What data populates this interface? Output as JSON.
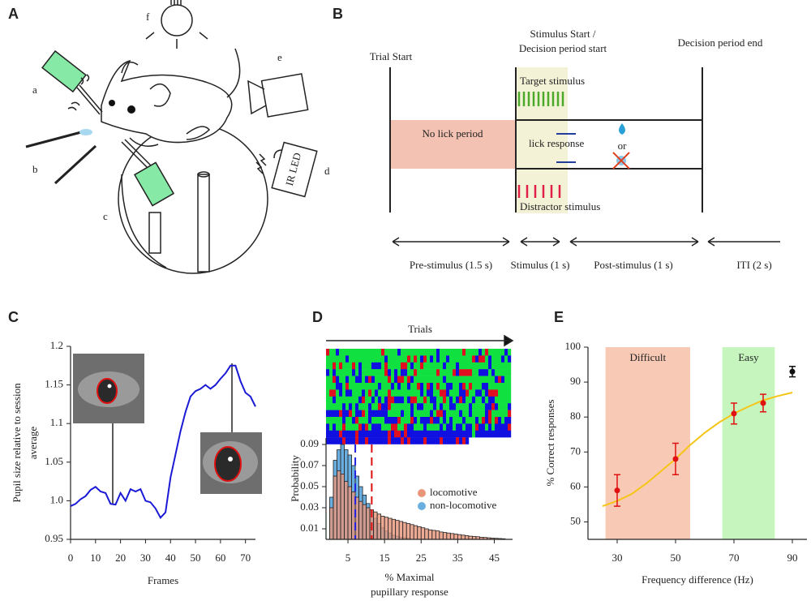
{
  "panel_labels": [
    "A",
    "B",
    "C",
    "D",
    "E"
  ],
  "setup": {
    "labels": [
      "a",
      "b",
      "c",
      "d",
      "e",
      "f"
    ],
    "ir_led": "IR LED"
  },
  "timeline": {
    "trial_start": "Trial Start",
    "stimulus_start": [
      "Stimulus Start /",
      "Decision period start"
    ],
    "decision_end": "Decision period end",
    "no_lick": "No lick period",
    "target": "Target stimulus",
    "lick": "lick response",
    "or": "or",
    "distractor": "Distractor stimulus",
    "periods": [
      "Pre-stimulus (1.5 s)",
      "Stimulus (1 s)",
      "Post-stimulus (1 s)",
      "ITI (2 s)"
    ]
  },
  "chart_data": [
    {
      "type": "line",
      "xlabel": "Frames",
      "ylabel": [
        "Pupil size relative to session",
        "average"
      ],
      "x": [
        0,
        2,
        4,
        6,
        8,
        10,
        12,
        14,
        16,
        18,
        20,
        22,
        24,
        26,
        28,
        30,
        32,
        34,
        36,
        38,
        40,
        42,
        44,
        46,
        48,
        50,
        52,
        54,
        56,
        58,
        60,
        62,
        64,
        66,
        68,
        70,
        72,
        74
      ],
      "values": [
        0.993,
        0.996,
        1.002,
        1.006,
        1.014,
        1.018,
        1.012,
        1.01,
        0.996,
        0.995,
        1.01,
        1.0,
        1.015,
        1.012,
        1.015,
        1.0,
        0.998,
        0.99,
        0.978,
        0.985,
        1.03,
        1.06,
        1.09,
        1.115,
        1.135,
        1.142,
        1.145,
        1.15,
        1.145,
        1.15,
        1.158,
        1.165,
        1.175,
        1.175,
        1.155,
        1.14,
        1.135,
        1.122
      ],
      "color": "#1a1ad6",
      "xlim": [
        0,
        74
      ],
      "ylim": [
        0.95,
        1.2
      ],
      "xticks": [
        0,
        10,
        20,
        30,
        40,
        50,
        60,
        70
      ],
      "yticks": [
        0.95,
        {
          "value": 1,
          "label": "1.0"
        },
        1.05,
        1.1,
        1.15,
        1.2
      ]
    },
    {
      "type": "histogram",
      "title": "Trials",
      "xlabel": [
        "% Maximal",
        "pupillary response"
      ],
      "ylabel": "Probability",
      "bins": [
        0,
        1,
        2,
        3,
        4,
        5,
        6,
        7,
        8,
        9,
        10,
        11,
        12,
        13,
        14,
        15,
        16,
        17,
        18,
        19,
        20,
        21,
        22,
        23,
        24,
        25,
        26,
        27,
        28,
        29,
        30,
        31,
        32,
        33,
        34,
        35,
        36,
        37,
        38,
        39,
        40,
        41,
        42,
        43,
        44,
        45,
        46,
        47,
        48
      ],
      "series": [
        {
          "name": "non-locomotive",
          "color": "#6aaee0",
          "line_x": 7,
          "values": [
            0.04,
            0.075,
            0.085,
            0.09,
            0.085,
            0.08,
            0.07,
            0.06,
            0.05,
            0.042,
            0.034,
            0.027,
            0.02,
            0.015,
            0.011,
            0.008,
            0.006,
            0.004,
            0.003,
            0.002,
            0.0015,
            0.001,
            0,
            0,
            0,
            0,
            0,
            0,
            0,
            0,
            0,
            0,
            0,
            0,
            0,
            0,
            0,
            0,
            0,
            0,
            0,
            0,
            0,
            0,
            0,
            0,
            0,
            0
          ]
        },
        {
          "name": "locomotive",
          "color": "#e8957a",
          "line_x": 11.5,
          "values": [
            0.03,
            0.06,
            0.065,
            0.062,
            0.055,
            0.05,
            0.045,
            0.04,
            0.036,
            0.033,
            0.03,
            0.028,
            0.026,
            0.024,
            0.022,
            0.021,
            0.02,
            0.019,
            0.018,
            0.017,
            0.016,
            0.015,
            0.014,
            0.013,
            0.012,
            0.011,
            0.01,
            0.009,
            0.0085,
            0.008,
            0.007,
            0.0065,
            0.006,
            0.0055,
            0.005,
            0.0045,
            0.004,
            0.0035,
            0.003,
            0.0028,
            0.0025,
            0.002,
            0.0018,
            0.0015,
            0.0012,
            0.001,
            0.0008,
            0.0006
          ]
        }
      ],
      "xlim": [
        -1,
        50
      ],
      "ylim": [
        0,
        0.1
      ],
      "xticks": [
        5,
        15,
        25,
        35,
        45
      ],
      "yticks": [
        0.01,
        0.03,
        0.05,
        0.07,
        0.09
      ]
    },
    {
      "type": "scatter",
      "xlabel": "Frequency difference (Hz)",
      "ylabel": "% Correct responses",
      "regions": [
        {
          "label": "Difficult",
          "x": [
            26,
            55
          ],
          "color": "#f8c9b4"
        },
        {
          "label": "Easy",
          "x": [
            66,
            84
          ],
          "color": "#c6f5be"
        }
      ],
      "fit": {
        "color": "#f5c518",
        "x": [
          25,
          30,
          35,
          40,
          45,
          50,
          55,
          60,
          65,
          70,
          75,
          80,
          85,
          90
        ],
        "values": [
          54.5,
          56,
          58,
          61,
          64.5,
          68,
          72,
          75.5,
          78.5,
          81,
          83,
          84.8,
          86,
          87
        ]
      },
      "series": [
        {
          "color": "#e01010",
          "x": [
            30,
            50,
            70,
            80
          ],
          "values": [
            59,
            68,
            81,
            84
          ],
          "errors": [
            4.5,
            4.5,
            3,
            2.5
          ]
        },
        {
          "color": "#111111",
          "x": [
            90
          ],
          "values": [
            93
          ],
          "errors": [
            1.5
          ]
        }
      ],
      "xlim": [
        20,
        95
      ],
      "ylim": [
        45,
        100
      ],
      "xticks": [
        30,
        50,
        70,
        90
      ],
      "yticks": [
        50,
        60,
        70,
        80,
        90,
        100
      ]
    }
  ]
}
